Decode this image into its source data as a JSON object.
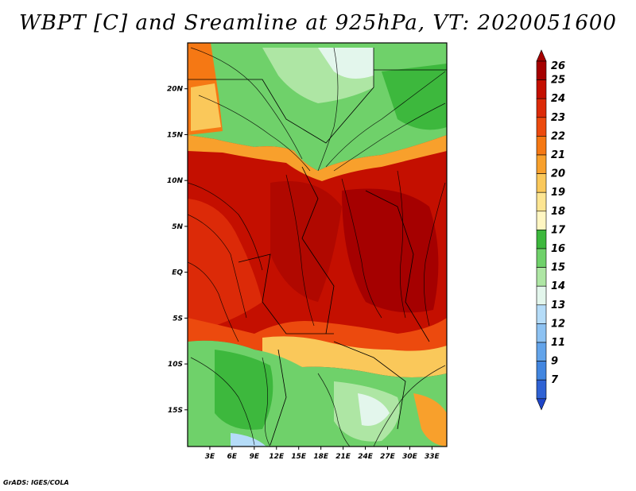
{
  "title": "WBPT [C] and Sreamline at 925hPa, VT: 2020051600",
  "credit": "GrADS: IGES/COLA",
  "map": {
    "lat_range": [
      -19,
      25
    ],
    "lon_range": [
      0,
      35
    ],
    "lat_ticks": [
      {
        "value": 20,
        "label": "20N"
      },
      {
        "value": 15,
        "label": "15N"
      },
      {
        "value": 10,
        "label": "10N"
      },
      {
        "value": 5,
        "label": "5N"
      },
      {
        "value": 0,
        "label": "EQ"
      },
      {
        "value": -5,
        "label": "5S"
      },
      {
        "value": -10,
        "label": "10S"
      },
      {
        "value": -15,
        "label": "15S"
      }
    ],
    "lon_ticks": [
      {
        "value": 3,
        "label": "3E"
      },
      {
        "value": 6,
        "label": "6E"
      },
      {
        "value": 9,
        "label": "9E"
      },
      {
        "value": 12,
        "label": "12E"
      },
      {
        "value": 15,
        "label": "15E"
      },
      {
        "value": 18,
        "label": "18E"
      },
      {
        "value": 21,
        "label": "21E"
      },
      {
        "value": 24,
        "label": "24E"
      },
      {
        "value": 27,
        "label": "27E"
      },
      {
        "value": 30,
        "label": "30E"
      },
      {
        "value": 33,
        "label": "33E"
      }
    ]
  },
  "colorbar": {
    "levels": [
      {
        "label": "26",
        "color": "#a50000"
      },
      {
        "label": "25",
        "color": "#c40f00"
      },
      {
        "label": "24",
        "color": "#dc2a08"
      },
      {
        "label": "23",
        "color": "#ec4a0e"
      },
      {
        "label": "22",
        "color": "#f57814"
      },
      {
        "label": "21",
        "color": "#f8a02c"
      },
      {
        "label": "20",
        "color": "#fac85a"
      },
      {
        "label": "19",
        "color": "#fde592"
      },
      {
        "label": "18",
        "color": "#fff6c2"
      },
      {
        "label": "17",
        "color": "#3db83d"
      },
      {
        "label": "16",
        "color": "#6fd16a"
      },
      {
        "label": "15",
        "color": "#aee6a4"
      },
      {
        "label": "14",
        "color": "#e3f6ec"
      },
      {
        "label": "13",
        "color": "#b5dcf8"
      },
      {
        "label": "12",
        "color": "#8dc2f2"
      },
      {
        "label": "11",
        "color": "#63a4ea"
      },
      {
        "label": "9",
        "color": "#4286e0"
      },
      {
        "label": "7",
        "color": "#2f62d4"
      }
    ],
    "bottom_color": "#1f45c8"
  }
}
